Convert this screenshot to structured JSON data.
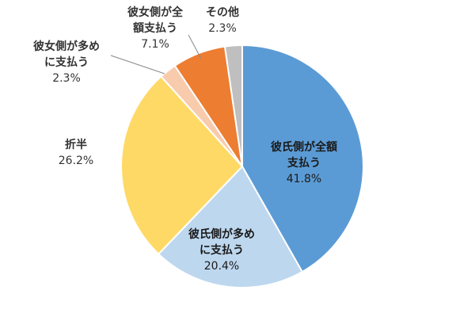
{
  "chart_data": {
    "type": "pie",
    "categories": [
      "彼氏側が全額支払う",
      "彼氏側が多めに支払う",
      "折半",
      "彼女側が多めに支払う",
      "彼女側が全額支払う",
      "その他"
    ],
    "values": [
      41.8,
      20.4,
      26.2,
      2.3,
      7.1,
      2.3
    ],
    "value_labels": [
      "41.8%",
      "20.4%",
      "26.2%",
      "2.3%",
      "7.1%",
      "2.3%"
    ],
    "colors": [
      "#5b9bd5",
      "#bdd7ee",
      "#ffd966",
      "#f8cbad",
      "#ed7d31",
      "#bfbfbf"
    ],
    "label_lines": [
      [
        "彼氏側が全額",
        "支払う"
      ],
      [
        "彼氏側が多め",
        "に支払う"
      ],
      [
        "折半"
      ],
      [
        "彼女側が多め",
        "に支払う"
      ],
      [
        "彼女側が全",
        "額支払う"
      ],
      [
        "その他"
      ]
    ],
    "start": "12 o'clock",
    "direction": "clockwise"
  }
}
